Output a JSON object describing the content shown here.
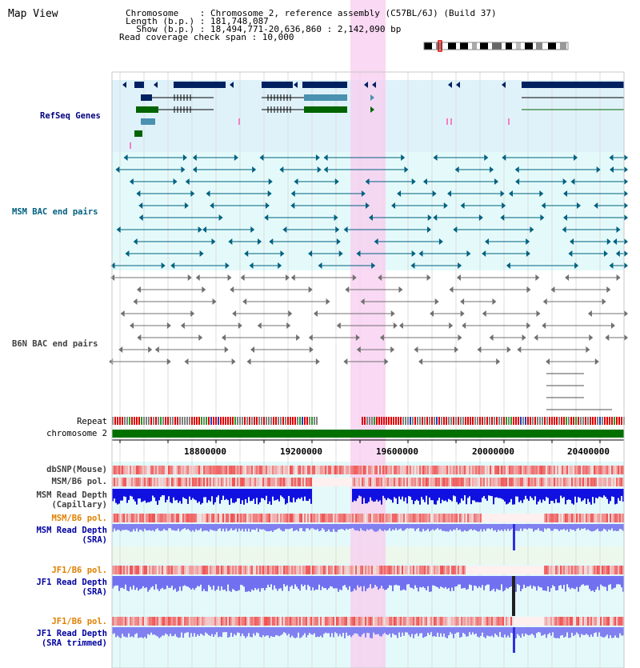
{
  "page": {
    "title": "Map View"
  },
  "info": {
    "line1": "Chromosome    : Chromosome 2, reference assembly (C57BL/6J) (Build 37)",
    "line2": "Length (b.p.) : 181,748,087",
    "line3": "  Show (b.p.) : 18,494,771-20,636,860 : 2,142,090 bp",
    "line4": "Read coverage check span : 10,000"
  },
  "tracks": {
    "refseq": "RefSeq Genes",
    "msm_bac": "MSM BAC end pairs",
    "b6n_bac": "B6N BAC end pairs",
    "repeat": "Repeat",
    "chromosome": "chromosome 2",
    "dbsnp": "dbSNP(Mouse)",
    "msm_pol1": "MSM/B6 pol.",
    "msm_cap": "MSM Read Depth\n(Capillary)",
    "msm_pol2": "MSM/B6 pol.",
    "msm_sra": "MSM Read Depth\n(SRA)",
    "jf1_pol1": "JF1/B6 pol.",
    "jf1_sra": "JF1 Read Depth\n(SRA)",
    "jf1_pol2": "JF1/B6 pol.",
    "jf1_trim": "JF1 Read Depth\n(SRA trimmed)"
  },
  "axis": {
    "ticks": [
      "18800000",
      "19200000",
      "19600000",
      "20000000",
      "20400000"
    ]
  },
  "colors": {
    "refseq_label": "#000080",
    "msm_label": "#006080",
    "b6n_label": "#404040",
    "pol_label": "#e08000",
    "depth_label": "#0000a0",
    "highlight": "#f8d0f0"
  }
}
